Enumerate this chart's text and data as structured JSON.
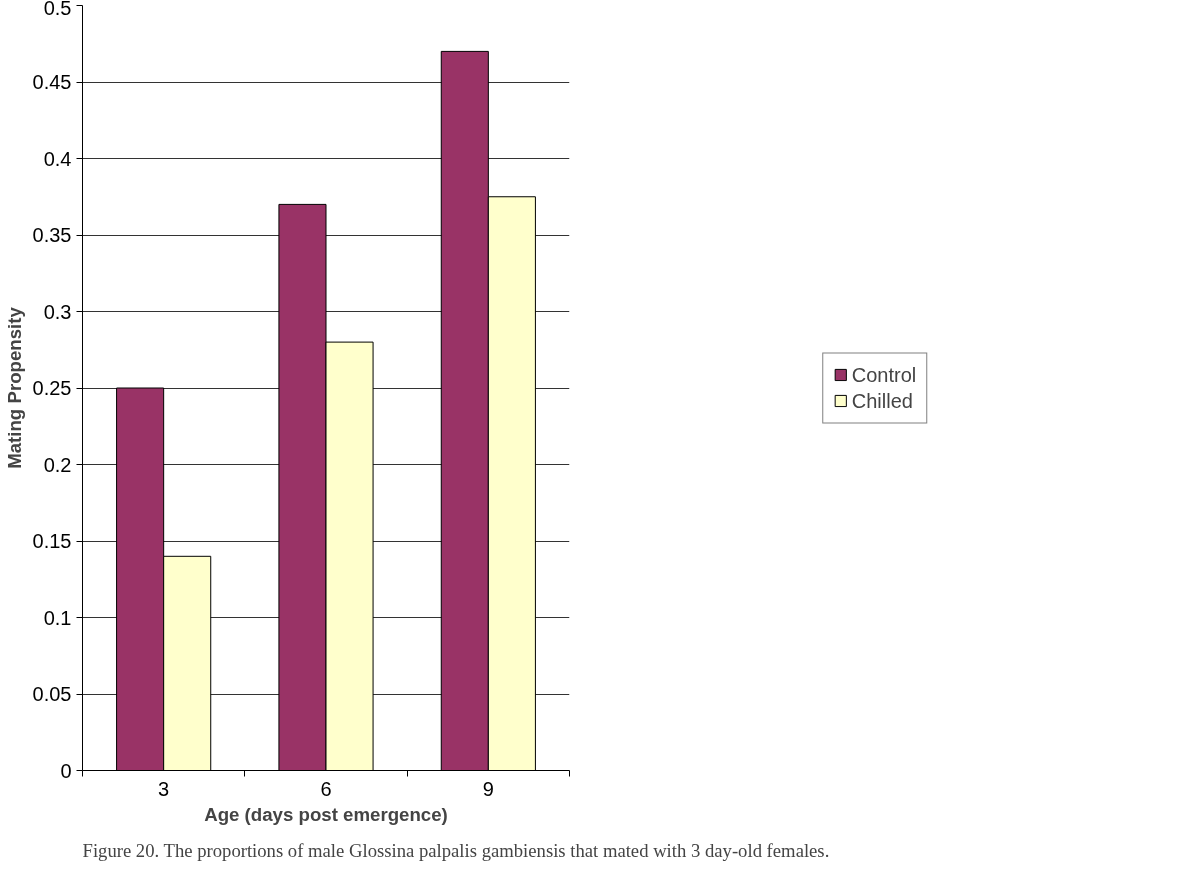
{
  "chart_data": {
    "type": "bar",
    "xlabel": "Age (days post emergence)",
    "ylabel": "Mating Propensity",
    "categories": [
      "3",
      "6",
      "9"
    ],
    "series": [
      {
        "name": "Control",
        "color": "#993366",
        "values": [
          0.25,
          0.37,
          0.47
        ]
      },
      {
        "name": "Chilled",
        "color": "#ffffcc",
        "values": [
          0.14,
          0.28,
          0.375
        ]
      }
    ],
    "ylim": [
      0,
      0.5
    ],
    "yticks": [
      0,
      0.05,
      0.1,
      0.15,
      0.2,
      0.25,
      0.3,
      0.35,
      0.4,
      0.45,
      0.5
    ],
    "grid": "y",
    "legend": "right",
    "annotations": [
      "Figure 20. The proportions of male Glossina palpalis gambiensis that mated with 3 day-old females."
    ]
  }
}
